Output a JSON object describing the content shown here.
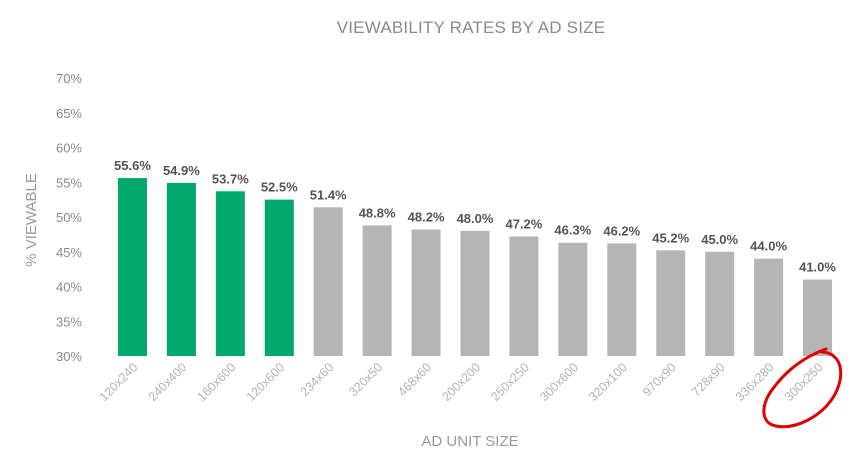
{
  "chart_data": {
    "type": "bar",
    "title": "VIEWABILITY RATES BY AD SIZE",
    "xlabel": "AD UNIT SIZE",
    "ylabel": "% VIEWABLE",
    "ylim": [
      30,
      70
    ],
    "yticks": [
      30,
      35,
      40,
      45,
      50,
      55,
      60,
      65,
      70
    ],
    "ytick_labels": [
      "30%",
      "35%",
      "40%",
      "45%",
      "50%",
      "55%",
      "60%",
      "65%",
      "70%"
    ],
    "grid": false,
    "categories": [
      "120x240",
      "240x400",
      "160x600",
      "120x600",
      "234x60",
      "320x50",
      "468x60",
      "200x200",
      "250x250",
      "300x600",
      "320x100",
      "970x90",
      "728x90",
      "336x280",
      "300x250"
    ],
    "values": [
      55.6,
      54.9,
      53.7,
      52.5,
      51.4,
      48.8,
      48.2,
      48.0,
      47.2,
      46.3,
      46.2,
      45.2,
      45.0,
      44.0,
      41.0
    ],
    "value_labels": [
      "55.6%",
      "54.9%",
      "53.7%",
      "52.5%",
      "51.4%",
      "48.8%",
      "48.2%",
      "48.0%",
      "47.2%",
      "46.3%",
      "46.2%",
      "45.2%",
      "45.0%",
      "44.0%",
      "41.0%"
    ],
    "colors": {
      "highlight": "#00a86b",
      "default": "#b5b5b5",
      "annotation": "#e00000"
    },
    "highlighted_count": 4,
    "annotation": "red hand-drawn circle around 300x250"
  }
}
